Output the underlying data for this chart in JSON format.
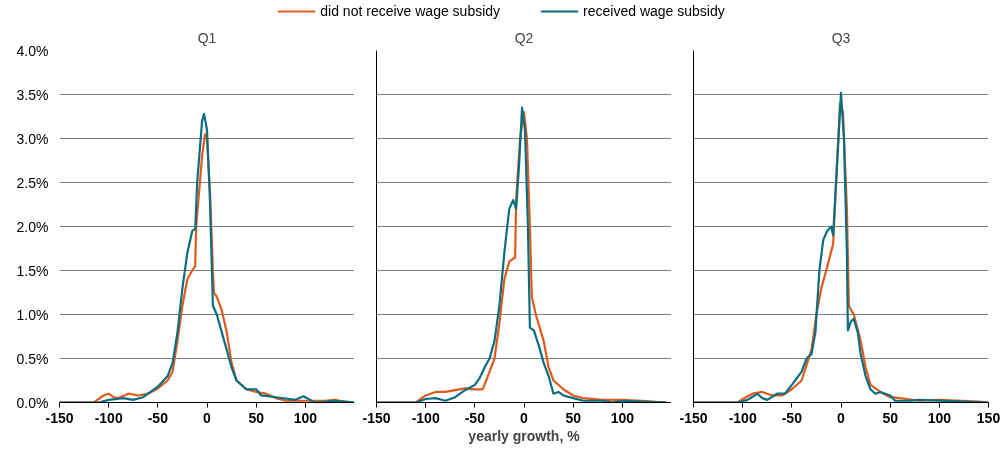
{
  "chart_data": [
    {
      "type": "line",
      "title": "Q1",
      "xlim": [
        -150,
        150
      ],
      "ylim": [
        0,
        4
      ],
      "xticks": [
        -150,
        -100,
        -50,
        0,
        50,
        100,
        {
          "value": 150,
          "label": null
        }
      ],
      "yticks": [
        {
          "value": 0,
          "label": "0.0%"
        },
        {
          "value": 0.5,
          "label": "0.5%"
        },
        {
          "value": 1,
          "label": "1.0%"
        },
        {
          "value": 1.5,
          "label": "1.5%"
        },
        {
          "value": 2,
          "label": "2.0%"
        },
        {
          "value": 2.5,
          "label": "2.5%"
        },
        {
          "value": 3,
          "label": "3.0%"
        },
        {
          "value": 3.5,
          "label": "3.5%"
        },
        {
          "value": 4,
          "label": "4.0%"
        }
      ],
      "grid": "y",
      "series": [
        {
          "color": "#e05a1e",
          "x": [
            -150,
            -115,
            -105,
            -100,
            -95,
            -90,
            -80,
            -70,
            -60,
            -50,
            -40,
            -35,
            -30,
            -25,
            -20,
            -15,
            -12,
            -11,
            -5,
            -2,
            0,
            3,
            6,
            7,
            10,
            15,
            20,
            25,
            30,
            40,
            50,
            60,
            70,
            80,
            100,
            120,
            130,
            145
          ],
          "values": [
            0,
            0,
            0.08,
            0.1,
            0.06,
            0.05,
            0.1,
            0.08,
            0.1,
            0.16,
            0.25,
            0.35,
            0.7,
            1.1,
            1.4,
            1.5,
            1.55,
            2.0,
            2.8,
            3.05,
            3.0,
            2.4,
            1.5,
            1.25,
            1.2,
            1.05,
            0.8,
            0.45,
            0.25,
            0.15,
            0.12,
            0.1,
            0.05,
            0.02,
            0.02,
            0.02,
            0.03,
            0
          ]
        },
        {
          "color": "#0b6e80",
          "x": [
            -150,
            -110,
            -100,
            -85,
            -75,
            -65,
            -50,
            -40,
            -35,
            -30,
            -25,
            -20,
            -15,
            -12,
            -10,
            -5,
            -3,
            0,
            3,
            6,
            10,
            15,
            20,
            25,
            30,
            40,
            50,
            55,
            70,
            90,
            98,
            105,
            110,
            130,
            150
          ],
          "values": [
            0,
            0,
            0.03,
            0.05,
            0.03,
            0.06,
            0.18,
            0.3,
            0.45,
            0.8,
            1.3,
            1.7,
            1.95,
            1.97,
            2.5,
            3.2,
            3.28,
            3.1,
            2.3,
            1.1,
            1.0,
            0.8,
            0.6,
            0.4,
            0.25,
            0.15,
            0.15,
            0.08,
            0.06,
            0.03,
            0.07,
            0.03,
            0.0,
            0.02,
            0
          ]
        }
      ]
    },
    {
      "type": "line",
      "title": "Q2",
      "xlabel": "yearly growth, %",
      "xlim": [
        -150,
        150
      ],
      "ylim": [
        0,
        4
      ],
      "xticks": [
        -150,
        -100,
        -50,
        0,
        50,
        100,
        {
          "value": 150,
          "label": null
        }
      ],
      "yticks": [
        0,
        0.5,
        1,
        1.5,
        2,
        2.5,
        3,
        3.5,
        4
      ],
      "tick_labels": "x",
      "grid": "y",
      "legend": "top",
      "series": [
        {
          "name": "did not receive wage subsidy",
          "color": "#e05a1e",
          "x": [
            -150,
            -110,
            -100,
            -90,
            -80,
            -70,
            -60,
            -50,
            -42,
            -35,
            -30,
            -25,
            -20,
            -15,
            -9,
            -8,
            -4,
            0,
            3,
            6,
            8,
            12,
            20,
            25,
            30,
            40,
            50,
            60,
            80,
            100,
            120,
            145
          ],
          "values": [
            0,
            0,
            0.08,
            0.12,
            0.12,
            0.14,
            0.16,
            0.15,
            0.15,
            0.35,
            0.5,
            0.9,
            1.4,
            1.6,
            1.65,
            2.3,
            3.0,
            3.3,
            3.0,
            2.0,
            1.2,
            1.0,
            0.7,
            0.4,
            0.25,
            0.15,
            0.08,
            0.05,
            0.03,
            0.03,
            0.02,
            0
          ]
        },
        {
          "name": "received wage subsidy",
          "color": "#0b6e80",
          "x": [
            -150,
            -110,
            -100,
            -90,
            -80,
            -70,
            -60,
            -50,
            -45,
            -40,
            -35,
            -30,
            -25,
            -20,
            -15,
            -11,
            -8,
            -5,
            -2,
            1,
            4,
            6,
            10,
            15,
            20,
            25,
            30,
            35,
            40,
            50,
            60,
            80,
            90,
            100,
            120,
            145
          ],
          "values": [
            0,
            0,
            0.04,
            0.05,
            0.02,
            0.06,
            0.14,
            0.2,
            0.28,
            0.4,
            0.5,
            0.7,
            1.1,
            1.7,
            2.2,
            2.3,
            2.2,
            2.7,
            3.35,
            3.1,
            2.0,
            0.85,
            0.82,
            0.65,
            0.45,
            0.3,
            0.1,
            0.12,
            0.08,
            0.05,
            0.02,
            0.02,
            0.0,
            0.02,
            0.01,
            0
          ]
        }
      ]
    },
    {
      "type": "line",
      "title": "Q3",
      "xlim": [
        -150,
        150
      ],
      "ylim": [
        0,
        4
      ],
      "xticks": [
        -150,
        -100,
        -50,
        0,
        50,
        100,
        150
      ],
      "yticks": [
        0,
        0.5,
        1,
        1.5,
        2,
        2.5,
        3,
        3.5,
        4
      ],
      "tick_labels": "x",
      "grid": "y",
      "series": [
        {
          "color": "#e05a1e",
          "x": [
            -150,
            -105,
            -100,
            -90,
            -80,
            -70,
            -60,
            -50,
            -40,
            -30,
            -25,
            -20,
            -15,
            -8,
            -5,
            -1,
            2,
            6,
            8,
            13,
            20,
            25,
            30,
            40,
            50,
            60,
            80,
            100,
            140,
            150
          ],
          "values": [
            0,
            0,
            0.04,
            0.1,
            0.12,
            0.08,
            0.08,
            0.15,
            0.25,
            0.6,
            1.0,
            1.3,
            1.5,
            1.8,
            2.5,
            3.4,
            3.3,
            2.2,
            1.1,
            1.0,
            0.7,
            0.4,
            0.2,
            0.12,
            0.06,
            0.05,
            0.02,
            0.03,
            0.01,
            0
          ]
        },
        {
          "color": "#0b6e80",
          "x": [
            -150,
            -105,
            -95,
            -85,
            -80,
            -75,
            -65,
            -57,
            -50,
            -40,
            -35,
            -30,
            -26,
            -22,
            -18,
            -14,
            -10,
            -8,
            -5,
            0,
            3,
            6,
            7,
            10,
            13,
            17,
            20,
            25,
            30,
            35,
            40,
            50,
            55,
            70,
            80,
            150
          ],
          "values": [
            0,
            0,
            0.03,
            0.1,
            0.05,
            0.03,
            0.1,
            0.1,
            0.2,
            0.35,
            0.5,
            0.55,
            0.8,
            1.5,
            1.85,
            1.95,
            2.0,
            1.9,
            2.5,
            3.52,
            3.0,
            1.7,
            0.82,
            0.92,
            0.95,
            0.8,
            0.55,
            0.3,
            0.15,
            0.1,
            0.12,
            0.08,
            0.02,
            0.02,
            0.03,
            0
          ]
        }
      ]
    }
  ]
}
